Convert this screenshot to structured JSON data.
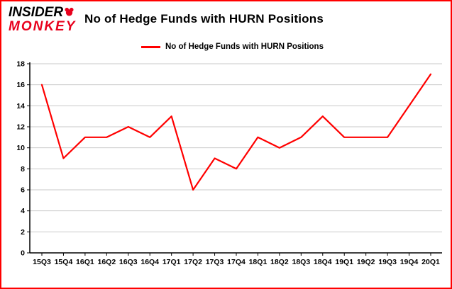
{
  "brand": {
    "line1": "INSIDER",
    "line2": "MONKEY",
    "accent": "#e8001c"
  },
  "title": "No of Hedge Funds with HURN Positions",
  "legend": {
    "label": "No of Hedge Funds with HURN Positions",
    "color": "#ff0000"
  },
  "chart_data": {
    "type": "line",
    "title": "No of Hedge Funds with HURN Positions",
    "categories": [
      "15Q3",
      "15Q4",
      "16Q1",
      "16Q2",
      "16Q3",
      "16Q4",
      "17Q1",
      "17Q2",
      "17Q3",
      "17Q4",
      "18Q1",
      "18Q2",
      "18Q3",
      "18Q4",
      "19Q1",
      "19Q2",
      "19Q3",
      "19Q4",
      "20Q1"
    ],
    "values": [
      16,
      9,
      11,
      11,
      12,
      11,
      13,
      6,
      9,
      8,
      11,
      10,
      11,
      13,
      11,
      11,
      11,
      14,
      17
    ],
    "xlabel": "",
    "ylabel": "",
    "ylim": [
      0,
      18
    ],
    "ytick_step": 2,
    "grid": true,
    "grid_color": "#c9c9c9",
    "axis_color": "#000000",
    "line_color": "#ff0000",
    "legend_position": "top"
  }
}
